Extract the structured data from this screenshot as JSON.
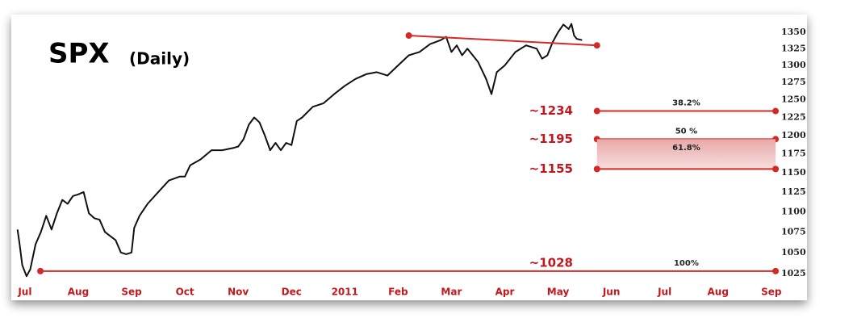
{
  "chart_data": {
    "type": "line",
    "title": "SPX",
    "subtitle": "(Daily)",
    "log_scale": true,
    "grid": false,
    "ylim": [
      1025,
      1350
    ],
    "yticks": [
      1025,
      1050,
      1075,
      1100,
      1125,
      1150,
      1175,
      1200,
      1225,
      1250,
      1275,
      1300,
      1325,
      1350
    ],
    "xlim": [
      -0.15,
      14.2
    ],
    "xticks": [
      {
        "value": 0,
        "label": "Jul"
      },
      {
        "value": 1,
        "label": "Aug"
      },
      {
        "value": 2,
        "label": "Sep"
      },
      {
        "value": 3,
        "label": "Oct"
      },
      {
        "value": 4,
        "label": "Nov"
      },
      {
        "value": 5,
        "label": "Dec"
      },
      {
        "value": 6,
        "label": "2011"
      },
      {
        "value": 7,
        "label": "Feb"
      },
      {
        "value": 8,
        "label": "Mar"
      },
      {
        "value": 9,
        "label": "Apr"
      },
      {
        "value": 10,
        "label": "May"
      },
      {
        "value": 11,
        "label": "Jun"
      },
      {
        "value": 12,
        "label": "Jul"
      },
      {
        "value": 13,
        "label": "Aug"
      },
      {
        "value": 14,
        "label": "Sep"
      }
    ],
    "series": [
      {
        "color": "#111111",
        "x": [
          -0.14,
          -0.1,
          -0.05,
          0.03,
          0.1,
          0.2,
          0.3,
          0.4,
          0.5,
          0.6,
          0.7,
          0.8,
          0.9,
          1.0,
          1.1,
          1.2,
          1.3,
          1.4,
          1.5,
          1.6,
          1.7,
          1.8,
          1.9,
          2.0,
          2.05,
          2.15,
          2.3,
          2.5,
          2.7,
          2.9,
          3.0,
          3.1,
          3.3,
          3.5,
          3.7,
          3.9,
          4.0,
          4.1,
          4.2,
          4.3,
          4.4,
          4.5,
          4.6,
          4.7,
          4.8,
          4.9,
          5.0,
          5.1,
          5.2,
          5.4,
          5.6,
          5.8,
          6.0,
          6.2,
          6.4,
          6.6,
          6.8,
          7.0,
          7.2,
          7.4,
          7.6,
          7.8,
          7.9,
          8.0,
          8.1,
          8.2,
          8.3,
          8.5,
          8.65,
          8.75,
          8.85,
          9.0,
          9.2,
          9.4,
          9.6,
          9.7,
          9.8,
          9.9,
          10.0,
          10.1,
          10.2,
          10.25,
          10.3,
          10.35,
          10.45
        ],
        "values": [
          1078,
          1060,
          1035,
          1022,
          1030,
          1060,
          1075,
          1095,
          1078,
          1098,
          1115,
          1110,
          1120,
          1122,
          1125,
          1098,
          1092,
          1090,
          1075,
          1070,
          1065,
          1050,
          1048,
          1050,
          1080,
          1095,
          1110,
          1125,
          1140,
          1145,
          1145,
          1160,
          1168,
          1180,
          1180,
          1183,
          1185,
          1195,
          1215,
          1225,
          1218,
          1200,
          1180,
          1190,
          1180,
          1190,
          1187,
          1220,
          1225,
          1240,
          1245,
          1258,
          1270,
          1280,
          1287,
          1290,
          1285,
          1300,
          1315,
          1320,
          1332,
          1338,
          1343,
          1320,
          1330,
          1315,
          1325,
          1305,
          1280,
          1258,
          1290,
          1300,
          1320,
          1330,
          1325,
          1310,
          1315,
          1335,
          1350,
          1362,
          1355,
          1363,
          1345,
          1340,
          1338
        ]
      }
    ],
    "annotation_color": "#d42a26",
    "trendline": {
      "x": [
        7.2,
        10.73
      ],
      "values": [
        1345,
        1330
      ]
    },
    "levels": [
      {
        "value": 1234,
        "label": "~1234",
        "ratio": "38.2%",
        "x": [
          10.73,
          14.08
        ]
      },
      {
        "value": 1195,
        "label": "~1195",
        "ratio": "50 %",
        "x": [
          10.73,
          14.08
        ]
      },
      {
        "value": 1155,
        "label": "~1155",
        "ratio": "61.8%",
        "x": [
          10.73,
          14.08
        ],
        "shade": true
      },
      {
        "value": 1028,
        "label": "~1028",
        "ratio": "100%",
        "x": [
          0.29,
          14.08
        ]
      }
    ]
  }
}
